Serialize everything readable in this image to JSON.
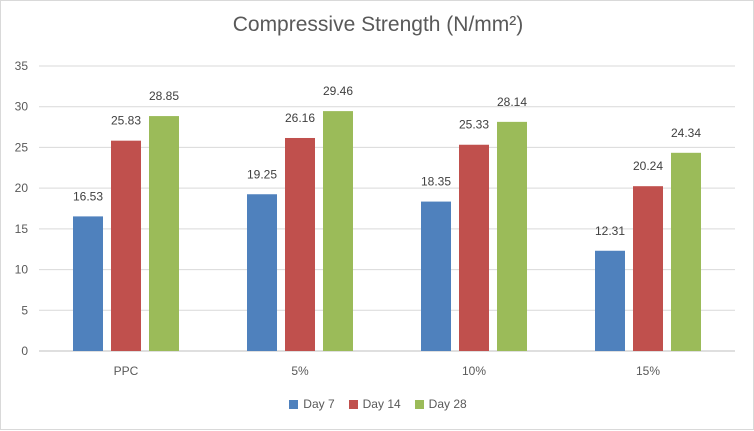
{
  "chart_data": {
    "type": "bar",
    "title": "Compressive Strength (N/mm²)",
    "xlabel": "",
    "ylabel": "",
    "ylim": [
      0,
      35
    ],
    "yticks": [
      0,
      5,
      10,
      15,
      20,
      25,
      30,
      35
    ],
    "ytick_labels": [
      "0",
      "5",
      "10",
      "15",
      "20",
      "25",
      "30",
      "35"
    ],
    "grid": true,
    "legend_position": "bottom",
    "categories": [
      "PPC",
      "5%",
      "10%",
      "15%"
    ],
    "series": [
      {
        "name": "Day 7",
        "color": "#4f81bd",
        "values": [
          16.53,
          19.25,
          18.35,
          12.31
        ],
        "labels": [
          "16.53",
          "19.25",
          "18.35",
          "12.31"
        ]
      },
      {
        "name": "Day 14",
        "color": "#c0504d",
        "values": [
          25.83,
          26.16,
          25.33,
          20.24
        ],
        "labels": [
          "25.83",
          "26.16",
          "25.33",
          "20.24"
        ]
      },
      {
        "name": "Day 28",
        "color": "#9bbb59",
        "values": [
          28.85,
          29.46,
          28.14,
          24.34
        ],
        "labels": [
          "28.85",
          "29.46",
          "28.14",
          "24.34"
        ]
      }
    ]
  }
}
